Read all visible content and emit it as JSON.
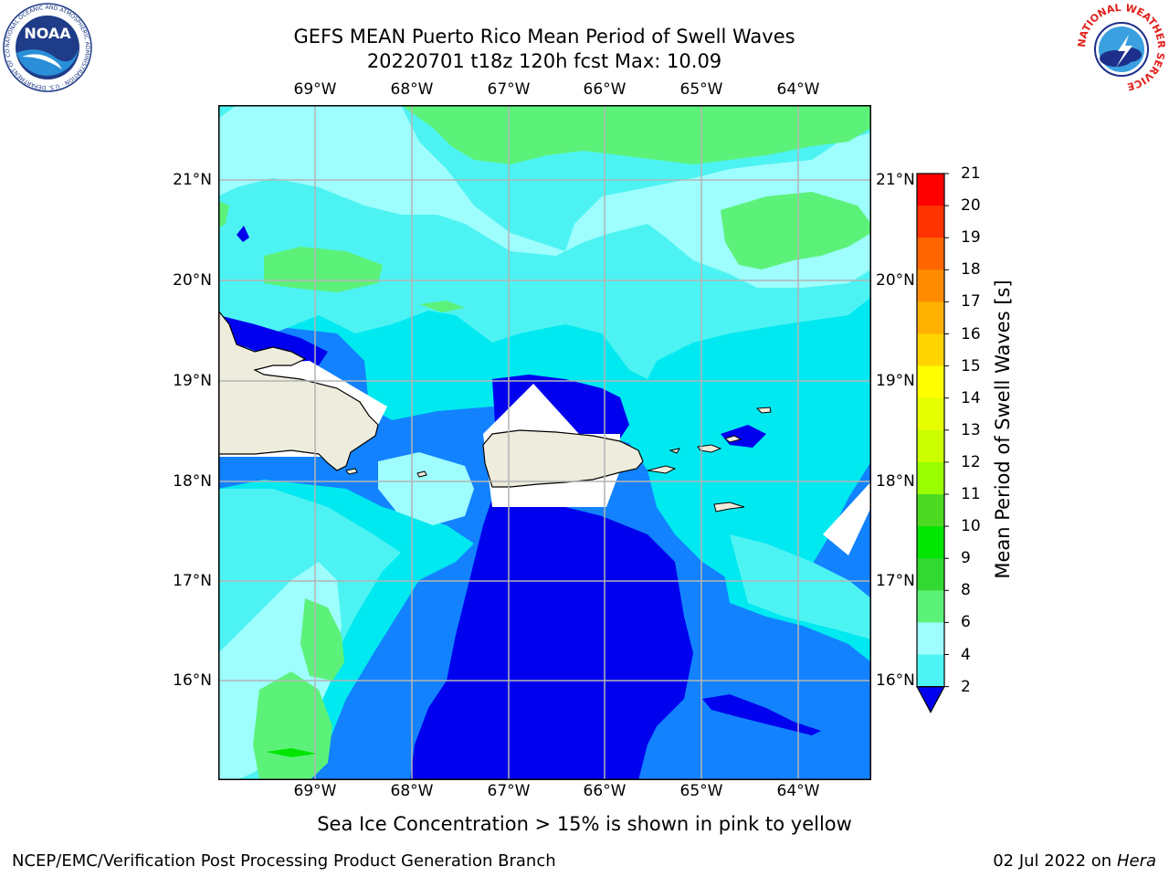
{
  "title_line1": "GEFS MEAN Puerto Rico Mean Period of Swell Waves",
  "title_line2": "20220701 t18z 120h fcst   Max: 10.09",
  "note": "Sea Ice Concentration > 15% is shown in pink to yellow",
  "footer_left": "NCEP/EMC/Verification Post Processing Product Generation Branch",
  "footer_date": "02 Jul 2022 on ",
  "footer_host": "Hera",
  "lon_labels": [
    "69°W",
    "68°W",
    "67°W",
    "66°W",
    "65°W",
    "64°W"
  ],
  "lat_labels": [
    "21°N",
    "20°N",
    "19°N",
    "18°N",
    "17°N",
    "16°N"
  ],
  "colorbar": {
    "title": "Mean Period of Swell Waves [s]",
    "ticks": [
      "21",
      "20",
      "19",
      "18",
      "17",
      "16",
      "15",
      "14",
      "13",
      "12",
      "11",
      "10",
      "9",
      "8",
      "6",
      "4",
      "2"
    ],
    "colors": [
      "#ff0000",
      "#ff3300",
      "#ff6600",
      "#ff8c00",
      "#ffb000",
      "#ffd400",
      "#ffff00",
      "#e6ff00",
      "#ccff00",
      "#99ff00",
      "#4cdb22",
      "#00e600",
      "#33d933",
      "#5cf27a",
      "#9efdfd",
      "#4df3f3",
      "#00e8ee",
      "#0f80ff",
      "#0000ee"
    ]
  },
  "logos": {
    "noaa": "NOAA",
    "noaa_ring": "NATIONAL OCEANIC AND ATMOSPHERIC ADMINISTRATION · U.S. DEPARTMENT OF COMMERCE",
    "nws_ring": "NATIONAL WEATHER SERVICE"
  },
  "map_colors": {
    "land": "#eeecdc",
    "period_2_4": "#1282ff",
    "period_lt2": "#0000ee",
    "period_4_6": "#00e9f0",
    "period_6_8": "#4df3f3",
    "period_8_9": "#9efdfd",
    "period_9_10": "#5cf27a",
    "period_10_11": "#00e600",
    "grid": "#b4b4b4"
  }
}
